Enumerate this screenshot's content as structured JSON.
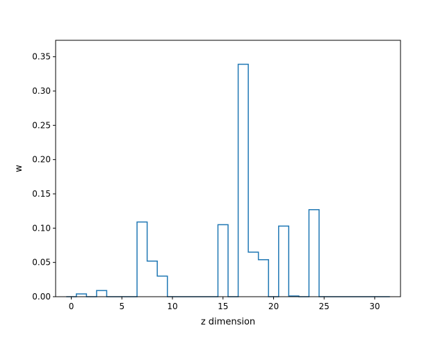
{
  "chart_data": {
    "type": "histogram-step",
    "xlabel": "z dimension",
    "ylabel": "w",
    "xlim": [
      -1.55,
      32.55
    ],
    "ylim": [
      0,
      0.374
    ],
    "x_ticks": [
      0,
      5,
      10,
      15,
      20,
      25,
      30
    ],
    "x_tick_labels": [
      "0",
      "5",
      "10",
      "15",
      "20",
      "25",
      "30"
    ],
    "y_ticks": [
      0.0,
      0.05,
      0.1,
      0.15,
      0.2,
      0.25,
      0.3,
      0.35
    ],
    "y_tick_labels": [
      "0.00",
      "0.05",
      "0.10",
      "0.15",
      "0.20",
      "0.25",
      "0.30",
      "0.35"
    ],
    "bin_edges": [
      -0.5,
      0.5,
      1.5,
      2.5,
      3.5,
      4.5,
      5.5,
      6.5,
      7.5,
      8.5,
      9.5,
      10.5,
      11.5,
      12.5,
      13.5,
      14.5,
      15.5,
      16.5,
      17.5,
      18.5,
      19.5,
      20.5,
      21.5,
      22.5,
      23.5,
      24.5,
      25.5,
      26.5,
      27.5,
      28.5,
      29.5,
      30.5,
      31.5
    ],
    "values": [
      0.0,
      0.004,
      0.0,
      0.009,
      0.0,
      0.0,
      0.0,
      0.109,
      0.052,
      0.03,
      0.0,
      0.0,
      0.0,
      0.0,
      0.0,
      0.105,
      0.0,
      0.339,
      0.065,
      0.054,
      0.0,
      0.103,
      0.001,
      0.0,
      0.127,
      0.0,
      0.0,
      0.0,
      0.0,
      0.0,
      0.0,
      0.0
    ],
    "grid": false,
    "legend": "none",
    "line_color": "#1f77b4"
  }
}
